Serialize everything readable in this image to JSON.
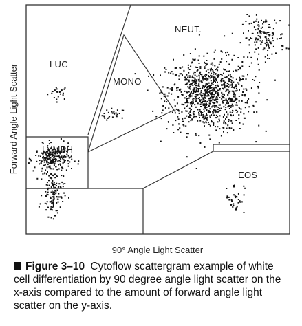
{
  "chart_data": {
    "type": "scatter",
    "xlabel": "90° Angle Light Scatter",
    "ylabel": "Forward Angle Light Scatter",
    "grid": false,
    "legend": "none",
    "regions": [
      {
        "name": "LUC"
      },
      {
        "name": "MONO"
      },
      {
        "name": "NEUT."
      },
      {
        "name": "LYMPH"
      },
      {
        "name": "EOS"
      }
    ],
    "clusters": [
      {
        "region": "LUC",
        "cx": 0.12,
        "cy": 0.62,
        "sx": 0.02,
        "sy": 0.016,
        "n": 22
      },
      {
        "region": "MONO",
        "cx": 0.33,
        "cy": 0.52,
        "sx": 0.022,
        "sy": 0.015,
        "n": 26
      },
      {
        "region": "NEUT.",
        "cx": 0.69,
        "cy": 0.61,
        "sx": 0.08,
        "sy": 0.08,
        "n": 900
      },
      {
        "region": "NEUT.",
        "cx": 0.9,
        "cy": 0.86,
        "sx": 0.04,
        "sy": 0.045,
        "n": 140
      },
      {
        "region": "LYMPH",
        "cx": 0.1,
        "cy": 0.33,
        "sx": 0.035,
        "sy": 0.03,
        "n": 220
      },
      {
        "region": "LYMPH",
        "cx": 0.1,
        "cy": 0.18,
        "sx": 0.02,
        "sy": 0.05,
        "n": 120
      },
      {
        "region": "EOS",
        "cx": 0.79,
        "cy": 0.16,
        "sx": 0.018,
        "sy": 0.035,
        "n": 35
      }
    ]
  },
  "caption": {
    "figure_number": "Figure 3–10",
    "text": "Cytoflow scattergram example of white cell differentiation by 90 degree angle light scatter on the x-axis compared to the amount of forward angle light scatter on the y-axis."
  }
}
